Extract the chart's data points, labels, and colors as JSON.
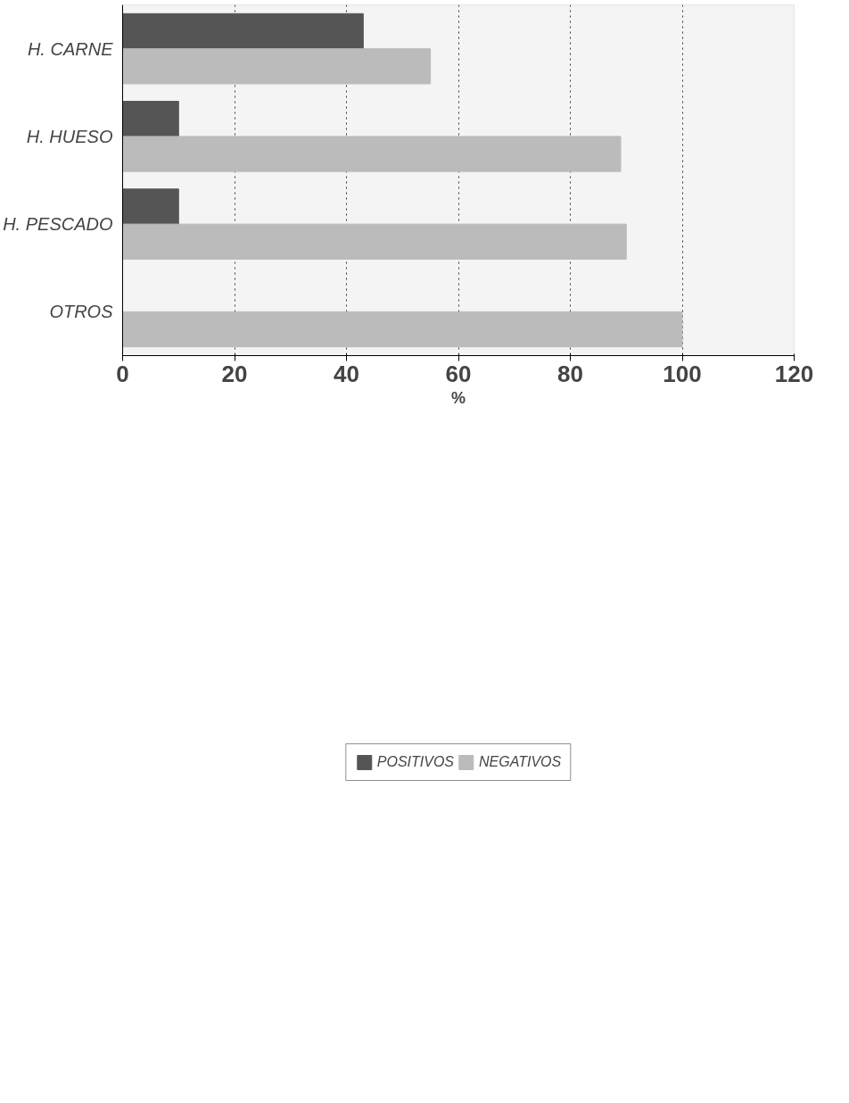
{
  "chart_data": {
    "type": "bar",
    "orientation": "horizontal",
    "xlabel": "%",
    "categories": [
      "H. CARNE",
      "H. HUESO",
      "H. PESCADO",
      "OTROS"
    ],
    "series": [
      {
        "name": "POSITIVOS",
        "color": "#555555",
        "values": [
          43,
          10,
          10,
          0
        ]
      },
      {
        "name": "NEGATIVOS",
        "color": "#bbbbbb",
        "values": [
          55,
          89,
          90,
          100
        ]
      }
    ],
    "xlim": [
      0,
      120
    ],
    "xticks": [
      0,
      20,
      40,
      60,
      80,
      100,
      120
    ],
    "grid": "x",
    "legend": "bottom"
  }
}
